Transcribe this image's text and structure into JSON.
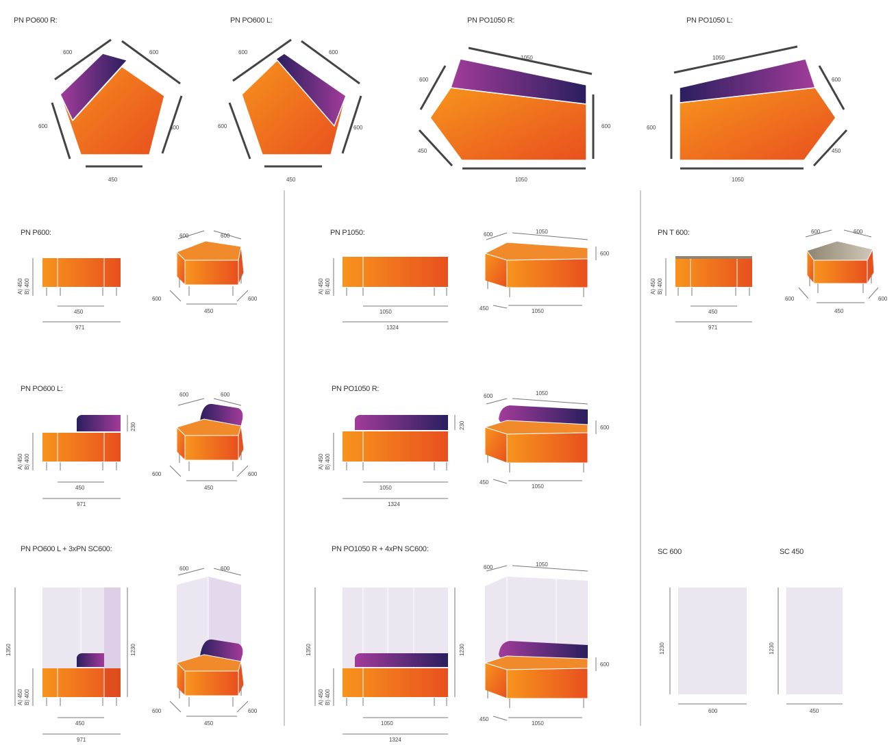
{
  "colors": {
    "orange_light": "#f7941d",
    "orange_dark": "#e8501e",
    "purple_light": "#a23c9a",
    "purple_dark": "#2a1f5e",
    "panel": "#ece6f1",
    "gray_top": "#a79b86",
    "line": "#555555"
  },
  "top": [
    {
      "title": "PN PO600 R:",
      "dims": [
        "600",
        "600",
        "600",
        "600",
        "450"
      ]
    },
    {
      "title": "PN PO600 L:",
      "dims": [
        "600",
        "600",
        "600",
        "600",
        "450"
      ]
    },
    {
      "title": "PN PO1050 R:",
      "dims": [
        "1050",
        "600",
        "450",
        "600",
        "1050"
      ]
    },
    {
      "title": "PN PO1050 L:",
      "dims": [
        "1050",
        "600",
        "600",
        "450",
        "1050"
      ]
    }
  ],
  "rows": {
    "r1": {
      "a": {
        "title": "PN P600:",
        "h": [
          "A) 450",
          "B) 400"
        ],
        "w": "450",
        "total": "971",
        "iso": [
          "600",
          "600",
          "600",
          "600",
          "450"
        ]
      },
      "b": {
        "title": "PN P1050:",
        "h": [
          "A) 450",
          "B) 400"
        ],
        "w": "1050",
        "total": "1324",
        "iso": [
          "600",
          "1050",
          "600",
          "450",
          "1050"
        ]
      },
      "c": {
        "title": "PN T 600:",
        "h": [
          "A) 450",
          "B) 400"
        ],
        "w": "450",
        "total": "971",
        "iso": [
          "600",
          "600",
          "600",
          "600",
          "450"
        ]
      }
    },
    "r2": {
      "a": {
        "title": "PN PO600 L:",
        "h": [
          "A) 450",
          "B) 400"
        ],
        "back": "230",
        "w": "450",
        "total": "971",
        "iso": [
          "600",
          "600",
          "600",
          "600",
          "450"
        ]
      },
      "b": {
        "title": "PN PO1050 R:",
        "h": [
          "A) 450",
          "B) 400"
        ],
        "back": "230",
        "w": "1050",
        "total": "1324",
        "iso": [
          "600",
          "1050",
          "600",
          "450",
          "1050"
        ]
      }
    },
    "r3": {
      "a": {
        "title": "PN PO600 L + 3xPN SC600:",
        "h": [
          "A) 450",
          "B) 400"
        ],
        "full": "1350",
        "screen": "1230",
        "w": "450",
        "total": "971",
        "iso": [
          "600",
          "600",
          "600",
          "600",
          "450"
        ]
      },
      "b": {
        "title": "PN PO1050 R + 4xPN SC600:",
        "h": [
          "A) 450",
          "B) 400"
        ],
        "full": "1350",
        "screen": "1230",
        "w": "1050",
        "total": "1324",
        "iso": [
          "600",
          "1050",
          "600",
          "450",
          "1050"
        ]
      },
      "c": {
        "title": "SC 600",
        "h": "1230",
        "w": "600"
      },
      "d": {
        "title": "SC 450",
        "h": "1230",
        "w": "450"
      }
    }
  }
}
